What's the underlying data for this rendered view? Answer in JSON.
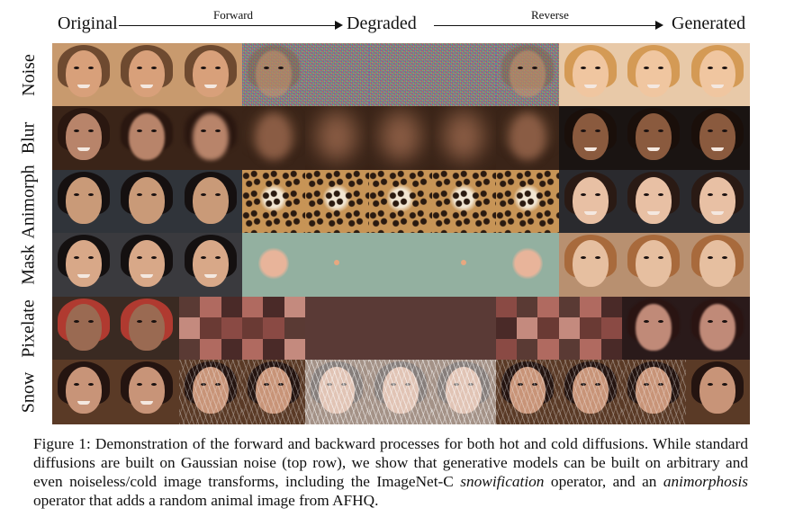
{
  "header": {
    "original": "Original",
    "forward": "Forward",
    "degraded": "Degraded",
    "reverse": "Reverse",
    "generated": "Generated"
  },
  "rows": [
    {
      "label": "Noise"
    },
    {
      "label": "Blur"
    },
    {
      "label": "Animorph"
    },
    {
      "label": "Mask"
    },
    {
      "label": "Pixelate"
    },
    {
      "label": "Snow"
    }
  ],
  "caption": {
    "p1": "Figure 1: Demonstration of the forward and backward processes for both hot and cold diffusions. While standard diffusions are built on Gaussian noise (top row), we show that generative models can be built on arbitrary and even noiseless/cold image transforms, including the ImageNet-C ",
    "em1": "snowification",
    "p2": " operator, and an ",
    "em2": "animorphosis",
    "p3": " operator that adds a random animal image from AFHQ."
  },
  "colors": {
    "mask_bg": "#93b0a0",
    "blur_bg": "#3a2418",
    "pixel_bg": "#2a1a18"
  }
}
